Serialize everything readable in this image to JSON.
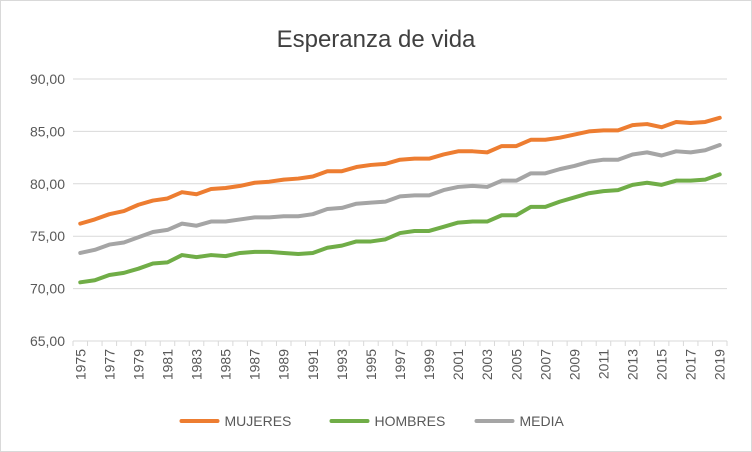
{
  "chart_data": {
    "type": "line",
    "title": "Esperanza de vida",
    "xlabel": "",
    "ylabel": "",
    "ylim": [
      65,
      90
    ],
    "yticks": [
      "65,00",
      "70,00",
      "75,00",
      "80,00",
      "85,00",
      "90,00"
    ],
    "grid": true,
    "legend_position": "bottom",
    "x": [
      1975,
      1976,
      1977,
      1978,
      1979,
      1980,
      1981,
      1982,
      1983,
      1984,
      1985,
      1986,
      1987,
      1988,
      1989,
      1990,
      1991,
      1992,
      1993,
      1994,
      1995,
      1996,
      1997,
      1998,
      1999,
      2000,
      2001,
      2002,
      2003,
      2004,
      2005,
      2006,
      2007,
      2008,
      2009,
      2010,
      2011,
      2012,
      2013,
      2014,
      2015,
      2016,
      2017,
      2018,
      2019
    ],
    "xtick_labels": [
      "1975",
      "1977",
      "1979",
      "1981",
      "1983",
      "1985",
      "1987",
      "1989",
      "1991",
      "1993",
      "1995",
      "1997",
      "1999",
      "2001",
      "2003",
      "2005",
      "2007",
      "2009",
      "2011",
      "2013",
      "2015",
      "2017",
      "2019"
    ],
    "series": [
      {
        "name": "MUJERES",
        "color": "#ed7d31",
        "values": [
          76.2,
          76.6,
          77.1,
          77.4,
          78.0,
          78.4,
          78.6,
          79.2,
          79.0,
          79.5,
          79.6,
          79.8,
          80.1,
          80.2,
          80.4,
          80.5,
          80.7,
          81.2,
          81.2,
          81.6,
          81.8,
          81.9,
          82.3,
          82.4,
          82.4,
          82.8,
          83.1,
          83.1,
          83.0,
          83.6,
          83.6,
          84.2,
          84.2,
          84.4,
          84.7,
          85.0,
          85.1,
          85.1,
          85.6,
          85.7,
          85.4,
          85.9,
          85.8,
          85.9,
          86.3
        ]
      },
      {
        "name": "HOMBRES",
        "color": "#70ad47",
        "values": [
          70.6,
          70.8,
          71.3,
          71.5,
          71.9,
          72.4,
          72.5,
          73.2,
          73.0,
          73.2,
          73.1,
          73.4,
          73.5,
          73.5,
          73.4,
          73.3,
          73.4,
          73.9,
          74.1,
          74.5,
          74.5,
          74.7,
          75.3,
          75.5,
          75.5,
          75.9,
          76.3,
          76.4,
          76.4,
          77.0,
          77.0,
          77.8,
          77.8,
          78.3,
          78.7,
          79.1,
          79.3,
          79.4,
          79.9,
          80.1,
          79.9,
          80.3,
          80.3,
          80.4,
          80.9
        ]
      },
      {
        "name": "MEDIA",
        "color": "#a5a5a5",
        "values": [
          73.4,
          73.7,
          74.2,
          74.4,
          74.9,
          75.4,
          75.6,
          76.2,
          76.0,
          76.4,
          76.4,
          76.6,
          76.8,
          76.8,
          76.9,
          76.9,
          77.1,
          77.6,
          77.7,
          78.1,
          78.2,
          78.3,
          78.8,
          78.9,
          78.9,
          79.4,
          79.7,
          79.8,
          79.7,
          80.3,
          80.3,
          81.0,
          81.0,
          81.4,
          81.7,
          82.1,
          82.3,
          82.3,
          82.8,
          83.0,
          82.7,
          83.1,
          83.0,
          83.2,
          83.7
        ]
      }
    ]
  }
}
